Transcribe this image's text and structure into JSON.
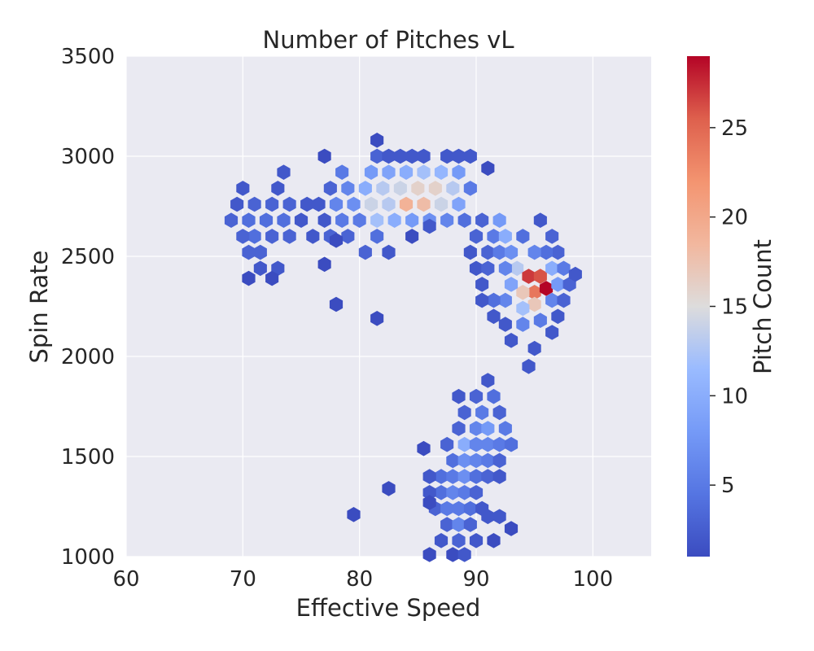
{
  "chart_data": {
    "type": "heatmap",
    "subtype": "hexbin",
    "title": "Number of Pitches vL",
    "xlabel": "Effective Speed",
    "ylabel": "Spin Rate",
    "xlim": [
      60,
      105
    ],
    "ylim": [
      1000,
      3500
    ],
    "xticks": [
      60,
      70,
      80,
      90,
      100
    ],
    "yticks": [
      1000,
      1500,
      2000,
      2500,
      3000,
      3500
    ],
    "grid": true,
    "colormap": "coolwarm",
    "colorbar": {
      "label": "Pitch Count",
      "min": 1,
      "max": 29,
      "ticks": [
        5,
        10,
        15,
        20,
        25
      ]
    },
    "colors": {
      "plot_background": "#eaeaf2",
      "grid": "#ffffff",
      "text": "#262626"
    },
    "bins": [
      [
        69,
        2680,
        3
      ],
      [
        69.5,
        2760,
        2
      ],
      [
        70.5,
        2680,
        4
      ],
      [
        71,
        2600,
        4
      ],
      [
        70,
        2600,
        3
      ],
      [
        70,
        2840,
        2
      ],
      [
        71,
        2760,
        3
      ],
      [
        72,
        2680,
        4
      ],
      [
        72.5,
        2600,
        3
      ],
      [
        71.5,
        2520,
        3
      ],
      [
        70.5,
        2520,
        3
      ],
      [
        71.5,
        2440,
        2
      ],
      [
        70.5,
        2390,
        1
      ],
      [
        72.5,
        2760,
        3
      ],
      [
        73.5,
        2680,
        4
      ],
      [
        73,
        2840,
        2
      ],
      [
        74,
        2760,
        3
      ],
      [
        73.5,
        2920,
        2
      ],
      [
        74,
        2600,
        3
      ],
      [
        73,
        2440,
        2
      ],
      [
        72.5,
        2390,
        1
      ],
      [
        75,
        2680,
        2
      ],
      [
        75.5,
        2760,
        2
      ],
      [
        76.5,
        2760,
        2
      ],
      [
        77,
        2680,
        2
      ],
      [
        76,
        2600,
        2
      ],
      [
        77.5,
        2840,
        3
      ],
      [
        78,
        2760,
        6
      ],
      [
        78.5,
        2680,
        5
      ],
      [
        77.5,
        2600,
        3
      ],
      [
        78.5,
        2920,
        5
      ],
      [
        79,
        2840,
        6
      ],
      [
        79.5,
        2760,
        7
      ],
      [
        80,
        2680,
        5
      ],
      [
        79,
        2600,
        3
      ],
      [
        80.5,
        2840,
        10
      ],
      [
        81,
        2760,
        14
      ],
      [
        81.5,
        2680,
        12
      ],
      [
        81,
        2920,
        8
      ],
      [
        82,
        2840,
        13
      ],
      [
        82.5,
        2760,
        13
      ],
      [
        83,
        2680,
        10
      ],
      [
        82.5,
        2920,
        9
      ],
      [
        83.5,
        2840,
        14
      ],
      [
        84,
        2760,
        19
      ],
      [
        84.5,
        2680,
        8
      ],
      [
        84,
        2920,
        10
      ],
      [
        85,
        2840,
        16
      ],
      [
        85.5,
        2760,
        18
      ],
      [
        86,
        2680,
        7
      ],
      [
        85.5,
        2920,
        12
      ],
      [
        86.5,
        2840,
        16
      ],
      [
        87,
        2760,
        14
      ],
      [
        87.5,
        2680,
        6
      ],
      [
        87,
        2920,
        11
      ],
      [
        88,
        2840,
        13
      ],
      [
        88.5,
        2760,
        9
      ],
      [
        89,
        2680,
        4
      ],
      [
        88.5,
        2920,
        8
      ],
      [
        89.5,
        2840,
        5
      ],
      [
        80.5,
        2520,
        3
      ],
      [
        81.5,
        2600,
        4
      ],
      [
        82.5,
        2520,
        2
      ],
      [
        81.5,
        3000,
        3
      ],
      [
        82.5,
        3000,
        2
      ],
      [
        83.5,
        3000,
        2
      ],
      [
        84.5,
        3000,
        2
      ],
      [
        85.5,
        3000,
        2
      ],
      [
        87.5,
        3000,
        2
      ],
      [
        88.5,
        3000,
        2
      ],
      [
        89.5,
        3000,
        2
      ],
      [
        77,
        3000,
        1
      ],
      [
        81.5,
        3080,
        1
      ],
      [
        91,
        2940,
        1
      ],
      [
        78,
        2580,
        1
      ],
      [
        77,
        2460,
        1
      ],
      [
        78,
        2260,
        1
      ],
      [
        81.5,
        2190,
        1
      ],
      [
        84.5,
        2600,
        1
      ],
      [
        86,
        2650,
        2
      ],
      [
        90.5,
        2680,
        3
      ],
      [
        91.5,
        2600,
        5
      ],
      [
        92,
        2680,
        8
      ],
      [
        92.5,
        2600,
        10
      ],
      [
        91,
        2520,
        3
      ],
      [
        92,
        2520,
        5
      ],
      [
        93,
        2520,
        7
      ],
      [
        93.5,
        2440,
        13
      ],
      [
        94.5,
        2400,
        27
      ],
      [
        95,
        2320,
        24
      ],
      [
        95.5,
        2400,
        26
      ],
      [
        96,
        2340,
        29
      ],
      [
        94,
        2320,
        17
      ],
      [
        95,
        2260,
        17
      ],
      [
        94,
        2240,
        12
      ],
      [
        96.5,
        2440,
        10
      ],
      [
        97,
        2360,
        8
      ],
      [
        96.5,
        2280,
        6
      ],
      [
        95.5,
        2180,
        5
      ],
      [
        94,
        2160,
        6
      ],
      [
        93,
        2360,
        9
      ],
      [
        92.5,
        2280,
        6
      ],
      [
        91.5,
        2280,
        4
      ],
      [
        92.5,
        2440,
        6
      ],
      [
        97.5,
        2440,
        5
      ],
      [
        98,
        2360,
        3
      ],
      [
        97,
        2520,
        3
      ],
      [
        96,
        2520,
        4
      ],
      [
        95,
        2520,
        6
      ],
      [
        94,
        2600,
        4
      ],
      [
        95.5,
        2680,
        2
      ],
      [
        96.5,
        2600,
        3
      ],
      [
        97.5,
        2280,
        3
      ],
      [
        97,
        2200,
        2
      ],
      [
        96.5,
        2120,
        2
      ],
      [
        95,
        2040,
        2
      ],
      [
        94.5,
        1950,
        2
      ],
      [
        93,
        2080,
        2
      ],
      [
        92.5,
        2160,
        2
      ],
      [
        90.5,
        2360,
        2
      ],
      [
        90,
        2440,
        2
      ],
      [
        89.5,
        2520,
        2
      ],
      [
        90,
        2600,
        3
      ],
      [
        91,
        2440,
        3
      ],
      [
        91.5,
        2200,
        2
      ],
      [
        90.5,
        2280,
        2
      ],
      [
        98.5,
        2410,
        2
      ],
      [
        88.5,
        1800,
        2
      ],
      [
        89,
        1720,
        3
      ],
      [
        90,
        1800,
        3
      ],
      [
        90.5,
        1720,
        5
      ],
      [
        91.5,
        1800,
        4
      ],
      [
        92,
        1720,
        3
      ],
      [
        91,
        1880,
        2
      ],
      [
        90,
        1640,
        6
      ],
      [
        91,
        1640,
        8
      ],
      [
        92.5,
        1640,
        5
      ],
      [
        88.5,
        1640,
        3
      ],
      [
        89,
        1560,
        10
      ],
      [
        90,
        1560,
        6
      ],
      [
        91,
        1560,
        6
      ],
      [
        92,
        1560,
        5
      ],
      [
        93,
        1560,
        4
      ],
      [
        87.5,
        1560,
        3
      ],
      [
        88,
        1480,
        4
      ],
      [
        89,
        1480,
        7
      ],
      [
        90,
        1480,
        6
      ],
      [
        91,
        1480,
        5
      ],
      [
        92,
        1480,
        3
      ],
      [
        87,
        1400,
        4
      ],
      [
        88,
        1400,
        5
      ],
      [
        89,
        1400,
        7
      ],
      [
        90,
        1400,
        4
      ],
      [
        91,
        1400,
        3
      ],
      [
        92,
        1400,
        2
      ],
      [
        86,
        1400,
        2
      ],
      [
        87,
        1320,
        4
      ],
      [
        88,
        1320,
        6
      ],
      [
        89,
        1320,
        5
      ],
      [
        90,
        1320,
        3
      ],
      [
        86,
        1320,
        2
      ],
      [
        86.5,
        1240,
        3
      ],
      [
        87.5,
        1240,
        5
      ],
      [
        88.5,
        1240,
        5
      ],
      [
        89.5,
        1240,
        4
      ],
      [
        90.5,
        1240,
        2
      ],
      [
        86,
        1270,
        1
      ],
      [
        87.5,
        1160,
        3
      ],
      [
        88.5,
        1160,
        6
      ],
      [
        89.5,
        1160,
        3
      ],
      [
        91,
        1200,
        2
      ],
      [
        92,
        1200,
        2
      ],
      [
        87,
        1080,
        2
      ],
      [
        88.5,
        1080,
        3
      ],
      [
        90,
        1080,
        2
      ],
      [
        91.5,
        1080,
        1
      ],
      [
        86,
        1010,
        1
      ],
      [
        88,
        1010,
        1
      ],
      [
        89,
        1010,
        2
      ],
      [
        93,
        1140,
        1
      ],
      [
        85.5,
        1540,
        1
      ],
      [
        82.5,
        1340,
        1
      ],
      [
        79.5,
        1210,
        1
      ]
    ]
  }
}
